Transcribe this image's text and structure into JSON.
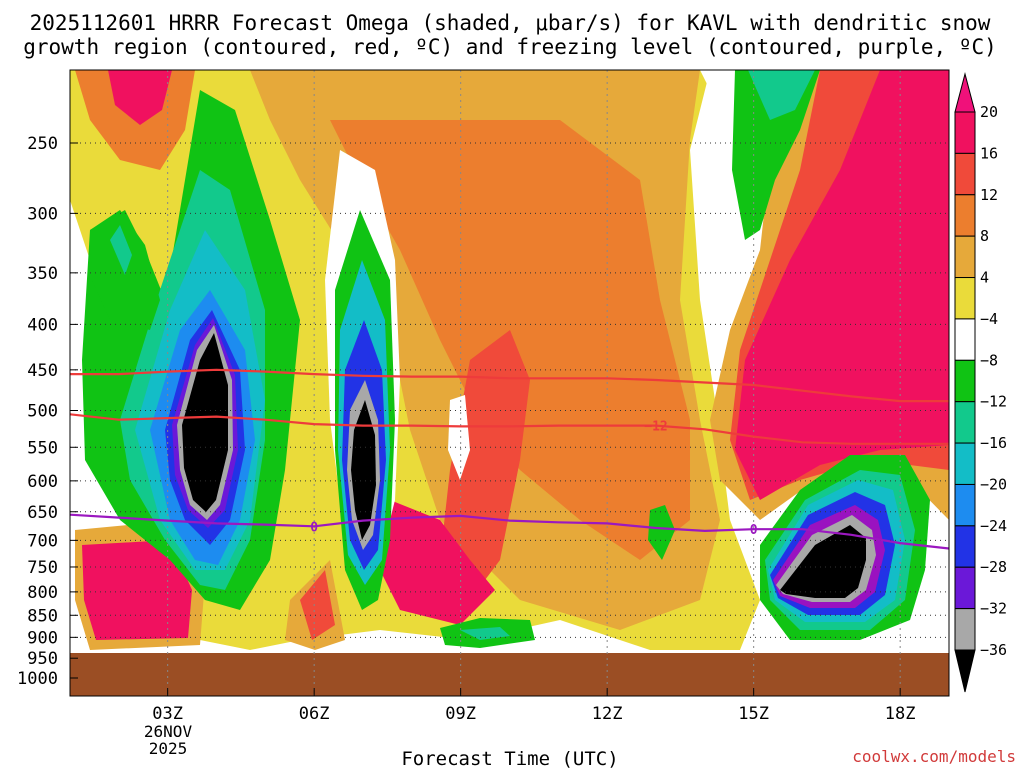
{
  "chart_data": {
    "type": "heatmap",
    "title_line1": "2025112601 HRRR Forecast Omega (shaded, μbar/s) for KAVL with dendritic snow",
    "title_line2": "growth region (contoured, red, ºC) and freezing level (contoured, purple, ºC)",
    "xlabel": "Forecast Time (UTC)",
    "ylabel": "",
    "credit": "coolwx.com/models",
    "x_range": [
      1,
      19
    ],
    "x_ticks": [
      {
        "value": 3,
        "label": "03Z"
      },
      {
        "value": 6,
        "label": "06Z"
      },
      {
        "value": 9,
        "label": "09Z"
      },
      {
        "value": 12,
        "label": "12Z"
      },
      {
        "value": 15,
        "label": "15Z"
      },
      {
        "value": 18,
        "label": "18Z"
      }
    ],
    "date_label": [
      "26NOV",
      "2025"
    ],
    "y_ticks": [
      {
        "value": 250,
        "label": "250"
      },
      {
        "value": 300,
        "label": "300"
      },
      {
        "value": 350,
        "label": "350"
      },
      {
        "value": 400,
        "label": "400"
      },
      {
        "value": 450,
        "label": "450"
      },
      {
        "value": 500,
        "label": "500"
      },
      {
        "value": 550,
        "label": "550"
      },
      {
        "value": 600,
        "label": "600"
      },
      {
        "value": 650,
        "label": "650"
      },
      {
        "value": 700,
        "label": "700"
      },
      {
        "value": 750,
        "label": "750"
      },
      {
        "value": 800,
        "label": "800"
      },
      {
        "value": 850,
        "label": "850"
      },
      {
        "value": 900,
        "label": "900"
      },
      {
        "value": 950,
        "label": "950"
      },
      {
        "value": 1000,
        "label": "1000"
      }
    ],
    "y_range_hPa": [
      200,
      1030
    ],
    "ground_level_hPa": 940,
    "ground_color": "#9b4e24",
    "colorbar": {
      "levels": [
        {
          "label": "20",
          "color": "#f0115f"
        },
        {
          "label": "16",
          "color": "#f04a3a"
        },
        {
          "label": "12",
          "color": "#ec7e2e"
        },
        {
          "label": "8",
          "color": "#e6a93a"
        },
        {
          "label": "4",
          "color": "#eadb3a"
        },
        {
          "label": "−4",
          "color": "#ffffff"
        },
        {
          "label": "−8",
          "color": "#10c314"
        },
        {
          "label": "−12",
          "color": "#12c98c"
        },
        {
          "label": "−16",
          "color": "#13bdc7"
        },
        {
          "label": "−20",
          "color": "#1d8cf0"
        },
        {
          "label": "−24",
          "color": "#2233e6"
        },
        {
          "label": "−28",
          "color": "#6b18d8"
        },
        {
          "label": "−32",
          "color": "#9a12c0"
        },
        {
          "label": "−36",
          "color": "#a8a8a8"
        }
      ],
      "top_color": "#f0117a",
      "bottom_color": "#000000"
    },
    "series": [
      {
        "name": "dendritic growth region upper bound (-12ºC)",
        "color": "#ee3b3b",
        "x": [
          1,
          2,
          3,
          4,
          5,
          6,
          7,
          8,
          9,
          10,
          11,
          12,
          13,
          14,
          15,
          16,
          17,
          18,
          19
        ],
        "y": [
          455,
          455,
          452,
          450,
          452,
          455,
          457,
          458,
          458,
          460,
          460,
          460,
          462,
          465,
          468,
          475,
          482,
          488,
          488
        ]
      },
      {
        "name": "dendritic growth region lower bound (-12ºC)",
        "label": "−12",
        "color": "#ee3b3b",
        "x": [
          1,
          2,
          3,
          4,
          5,
          6,
          7,
          8,
          9,
          10,
          11,
          12,
          13,
          14,
          15,
          16,
          17,
          18,
          19
        ],
        "y": [
          505,
          512,
          510,
          508,
          512,
          518,
          520,
          520,
          521,
          521,
          520,
          520,
          520,
          525,
          535,
          543,
          545,
          545,
          545
        ]
      },
      {
        "name": "freezing level (0ºC)",
        "label": "0",
        "color": "#9b18c0",
        "x": [
          1,
          2,
          3,
          4,
          5,
          6,
          7,
          8,
          9,
          10,
          11,
          12,
          13,
          14,
          15,
          16,
          17,
          18,
          19
        ],
        "y": [
          655,
          660,
          665,
          670,
          672,
          675,
          665,
          660,
          657,
          665,
          668,
          670,
          678,
          683,
          680,
          680,
          690,
          705,
          715
        ]
      }
    ]
  }
}
